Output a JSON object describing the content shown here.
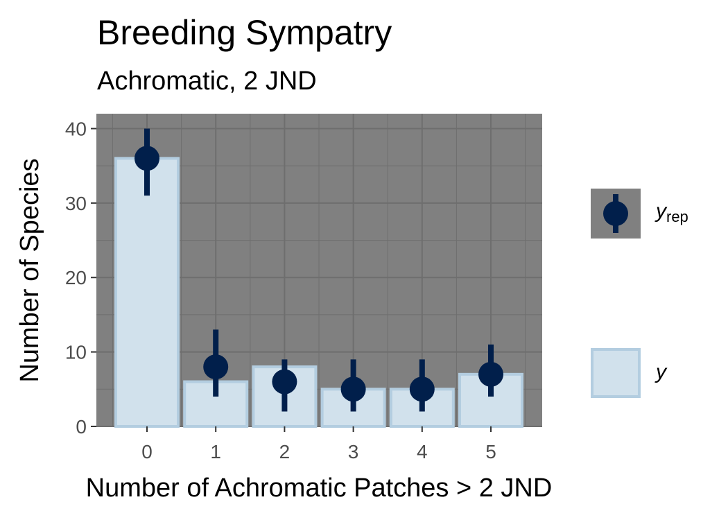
{
  "chart_data": {
    "type": "bar",
    "title": "Breeding Sympatry",
    "subtitle": "Achromatic, 2 JND",
    "xlabel": "Number of Achromatic Patches > 2 JND",
    "ylabel": "Number of Species",
    "categories": [
      "0",
      "1",
      "2",
      "3",
      "4",
      "5"
    ],
    "ylim": [
      0,
      42
    ],
    "yticks": [
      0,
      10,
      20,
      30,
      40
    ],
    "series": [
      {
        "name": "y",
        "type": "bar",
        "values": [
          36,
          6,
          8,
          5,
          5,
          7
        ]
      },
      {
        "name": "y_rep",
        "type": "pointrange",
        "values": [
          36,
          8,
          6,
          5,
          5,
          7
        ],
        "lower": [
          31,
          4,
          2,
          2,
          2,
          4
        ],
        "upper": [
          40,
          13,
          9,
          9,
          9,
          11
        ]
      }
    ],
    "legend": {
      "placement": "right",
      "entries": [
        {
          "symbol": "y",
          "subscript": "rep"
        },
        {
          "symbol": "y",
          "subscript": ""
        }
      ]
    },
    "grid": true,
    "colors": {
      "panel": "#808080",
      "grid": "#6e6e6e",
      "bar_fill": "#d1e1ec",
      "bar_stroke": "#b3cde0",
      "point": "#011f4b"
    }
  }
}
